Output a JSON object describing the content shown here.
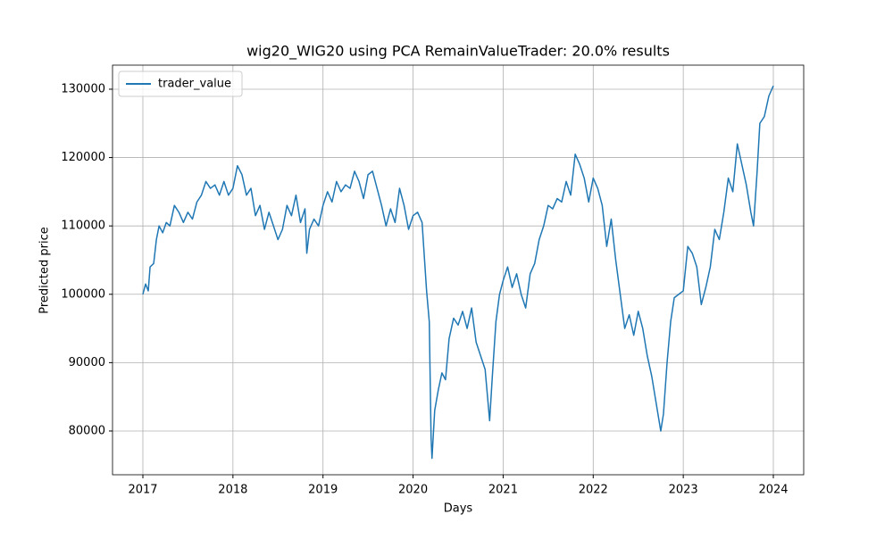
{
  "chart_data": {
    "type": "line",
    "title": "wig20_WIG20 using PCA RemainValueTrader: 20.0% results",
    "x_label": "Days",
    "y_label": "Predicted price",
    "x": [
      2017.0,
      2017.03,
      2017.06,
      2017.08,
      2017.12,
      2017.15,
      2017.18,
      2017.22,
      2017.26,
      2017.3,
      2017.35,
      2017.4,
      2017.45,
      2017.5,
      2017.55,
      2017.6,
      2017.65,
      2017.7,
      2017.75,
      2017.8,
      2017.85,
      2017.9,
      2017.95,
      2018.0,
      2018.05,
      2018.1,
      2018.15,
      2018.2,
      2018.25,
      2018.3,
      2018.35,
      2018.4,
      2018.45,
      2018.5,
      2018.55,
      2018.6,
      2018.65,
      2018.7,
      2018.75,
      2018.8,
      2018.82,
      2018.85,
      2018.9,
      2018.95,
      2019.0,
      2019.05,
      2019.1,
      2019.15,
      2019.2,
      2019.25,
      2019.3,
      2019.35,
      2019.4,
      2019.45,
      2019.5,
      2019.55,
      2019.6,
      2019.65,
      2019.7,
      2019.75,
      2019.8,
      2019.85,
      2019.9,
      2019.95,
      2020.0,
      2020.05,
      2020.1,
      2020.15,
      2020.18,
      2020.2,
      2020.21,
      2020.24,
      2020.28,
      2020.32,
      2020.36,
      2020.4,
      2020.45,
      2020.5,
      2020.55,
      2020.6,
      2020.65,
      2020.7,
      2020.75,
      2020.8,
      2020.85,
      2020.88,
      2020.92,
      2020.96,
      2021.0,
      2021.05,
      2021.1,
      2021.15,
      2021.2,
      2021.25,
      2021.3,
      2021.35,
      2021.4,
      2021.45,
      2021.5,
      2021.55,
      2021.6,
      2021.65,
      2021.7,
      2021.75,
      2021.8,
      2021.85,
      2021.9,
      2021.95,
      2022.0,
      2022.05,
      2022.1,
      2022.15,
      2022.2,
      2022.25,
      2022.3,
      2022.35,
      2022.4,
      2022.45,
      2022.5,
      2022.55,
      2022.6,
      2022.65,
      2022.7,
      2022.75,
      2022.78,
      2022.82,
      2022.86,
      2022.9,
      2022.95,
      2023.0,
      2023.05,
      2023.1,
      2023.15,
      2023.2,
      2023.25,
      2023.3,
      2023.35,
      2023.4,
      2023.45,
      2023.5,
      2023.55,
      2023.6,
      2023.65,
      2023.7,
      2023.75,
      2023.78,
      2023.82,
      2023.85,
      2023.9,
      2023.95,
      2024.0
    ],
    "series": [
      {
        "name": "trader_value",
        "color": "#1f77b4",
        "values": [
          100000,
          101500,
          100500,
          104000,
          104500,
          108000,
          110000,
          109000,
          110500,
          110000,
          113000,
          112000,
          110500,
          112000,
          111000,
          113500,
          114500,
          116500,
          115500,
          116000,
          114500,
          116500,
          114500,
          115500,
          118800,
          117500,
          114500,
          115500,
          111500,
          113000,
          109500,
          112000,
          110000,
          108000,
          109500,
          113000,
          111500,
          114500,
          110500,
          112500,
          106000,
          109500,
          111000,
          110000,
          113000,
          115000,
          113500,
          116500,
          115000,
          116000,
          115500,
          118000,
          116500,
          114000,
          117500,
          118000,
          115500,
          113000,
          110000,
          112500,
          110500,
          115500,
          113000,
          109500,
          111500,
          112000,
          110500,
          100500,
          96000,
          79000,
          76000,
          83000,
          86000,
          88500,
          87500,
          93500,
          96500,
          95500,
          97500,
          95000,
          98000,
          93000,
          91000,
          89000,
          81500,
          88000,
          96000,
          100000,
          102000,
          104000,
          101000,
          103000,
          100000,
          98000,
          103000,
          104500,
          108000,
          110000,
          113000,
          112500,
          114000,
          113500,
          116500,
          114500,
          120500,
          119000,
          117000,
          113500,
          117000,
          115500,
          113000,
          107000,
          111000,
          105000,
          100000,
          95000,
          97000,
          94000,
          97500,
          95000,
          91000,
          88000,
          84000,
          80000,
          82500,
          90000,
          96000,
          99500,
          100000,
          100500,
          107000,
          106000,
          104000,
          98500,
          101000,
          104000,
          109500,
          108000,
          112000,
          117000,
          115000,
          122000,
          119000,
          116000,
          112000,
          110000,
          118000,
          125000,
          126000,
          129000,
          130500
        ]
      }
    ],
    "xlim": [
      2016.663,
      2024.337
    ],
    "xticks": [
      2017,
      2018,
      2019,
      2020,
      2021,
      2022,
      2023,
      2024
    ],
    "ylim": [
      73600,
      133520
    ],
    "yticks": [
      80000,
      90000,
      100000,
      110000,
      120000,
      130000
    ],
    "grid": true,
    "legend": "upper-left"
  }
}
